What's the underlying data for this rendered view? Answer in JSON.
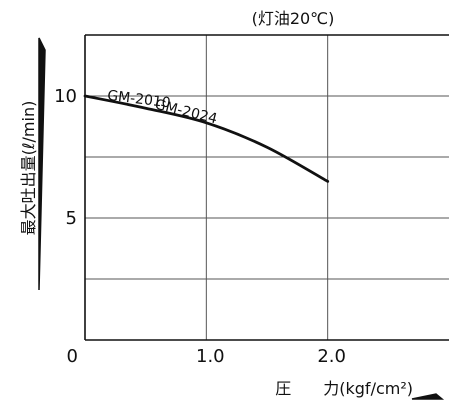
{
  "chart_data": {
    "type": "line",
    "subtitle": "(灯油20℃)",
    "xlabel": "圧　　力(kgf/cm²)",
    "ylabel": "最大吐出量(ℓ/min)",
    "xlim": [
      0,
      3.0
    ],
    "ylim": [
      0,
      12.5
    ],
    "x_ticks": [
      {
        "value": 0,
        "label": "0"
      },
      {
        "value": 1.0,
        "label": "1.0"
      },
      {
        "value": 2.0,
        "label": "2.0"
      }
    ],
    "y_ticks": [
      {
        "value": 5,
        "label": "5"
      },
      {
        "value": 10,
        "label": "10"
      }
    ],
    "grid": true,
    "gridlines_x": [
      1.0,
      2.0
    ],
    "gridlines_y": [
      2.5,
      5,
      7.5,
      10
    ],
    "series": [
      {
        "name": "GM-2010 GM-2024",
        "x": [
          0,
          0.5,
          1.0,
          1.5,
          2.0
        ],
        "y": [
          10.0,
          9.5,
          8.9,
          7.9,
          6.5
        ]
      }
    ],
    "curve_labels": [
      {
        "text": "GM-2010",
        "x": 0.18,
        "y": 9.85
      },
      {
        "text": "GM-2024",
        "x": 0.57,
        "y": 9.5
      }
    ]
  }
}
